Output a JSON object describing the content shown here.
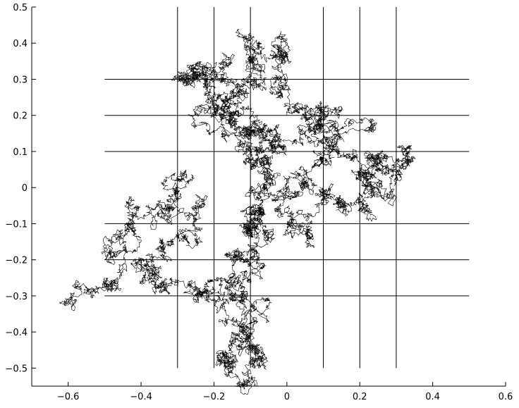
{
  "chart_data": {
    "type": "line",
    "title": "",
    "xlabel": "",
    "ylabel": "",
    "xlim": [
      -0.7,
      0.6
    ],
    "ylim": [
      -0.55,
      0.5
    ],
    "grid": false,
    "legend": "none",
    "xticks": [
      "−0.6",
      "−0.4",
      "−0.2",
      "0",
      "0.2",
      "0.4",
      "0.6"
    ],
    "xtick_values": [
      -0.6,
      -0.4,
      -0.2,
      0,
      0.2,
      0.4,
      0.6
    ],
    "yticks": [
      "−0.5",
      "−0.4",
      "−0.3",
      "−0.2",
      "−0.1",
      "0",
      "0.1",
      "0.2",
      "0.3",
      "0.4",
      "0.5"
    ],
    "ytick_values": [
      -0.5,
      -0.4,
      -0.3,
      -0.2,
      -0.1,
      0,
      0.1,
      0.2,
      0.3,
      0.4,
      0.5
    ],
    "reference_lines": {
      "vertical": {
        "x": [
          -0.3,
          -0.2,
          -0.1,
          0.1,
          0.2,
          0.3
        ],
        "y_range": [
          -0.5,
          0.5
        ]
      },
      "horizontal": {
        "y": [
          0.3,
          0.2,
          0.1,
          -0.1,
          -0.2,
          -0.3
        ],
        "x_range": [
          -0.5,
          0.5
        ]
      }
    },
    "series": [
      {
        "color": "#000000",
        "description_points": [
          [
            -0.58,
            -0.32
          ],
          [
            -0.53,
            -0.28
          ],
          [
            -0.5,
            -0.25
          ],
          [
            -0.46,
            -0.22
          ],
          [
            -0.44,
            -0.18
          ],
          [
            -0.46,
            -0.14
          ],
          [
            -0.43,
            -0.09
          ],
          [
            -0.38,
            -0.07
          ],
          [
            -0.33,
            -0.06
          ],
          [
            -0.3,
            0.0
          ],
          [
            -0.27,
            0.01
          ],
          [
            -0.24,
            -0.05
          ],
          [
            -0.27,
            -0.12
          ],
          [
            -0.3,
            -0.14
          ],
          [
            -0.34,
            -0.17
          ],
          [
            -0.37,
            -0.22
          ],
          [
            -0.4,
            -0.26
          ],
          [
            -0.36,
            -0.28
          ],
          [
            -0.3,
            -0.27
          ],
          [
            -0.26,
            -0.28
          ],
          [
            -0.22,
            -0.31
          ],
          [
            -0.18,
            -0.33
          ],
          [
            -0.14,
            -0.31
          ],
          [
            -0.1,
            -0.26
          ],
          [
            -0.08,
            -0.2
          ],
          [
            -0.05,
            -0.14
          ],
          [
            -0.09,
            -0.11
          ],
          [
            -0.11,
            -0.1
          ],
          [
            -0.07,
            -0.06
          ],
          [
            -0.06,
            0.01
          ],
          [
            -0.1,
            0.07
          ],
          [
            -0.12,
            0.12
          ],
          [
            -0.08,
            0.15
          ],
          [
            -0.05,
            0.13
          ],
          [
            -0.01,
            0.11
          ],
          [
            0.02,
            0.13
          ],
          [
            0.06,
            0.16
          ],
          [
            0.1,
            0.19
          ],
          [
            0.14,
            0.2
          ],
          [
            0.17,
            0.18
          ],
          [
            0.15,
            0.14
          ],
          [
            0.1,
            0.1
          ],
          [
            0.07,
            0.06
          ],
          [
            0.04,
            0.02
          ],
          [
            0.01,
            -0.03
          ],
          [
            -0.02,
            -0.06
          ],
          [
            0.02,
            -0.1
          ],
          [
            0.06,
            -0.12
          ],
          [
            0.08,
            -0.07
          ],
          [
            0.11,
            -0.03
          ],
          [
            0.16,
            -0.05
          ],
          [
            0.21,
            -0.07
          ],
          [
            0.24,
            -0.02
          ],
          [
            0.21,
            0.03
          ],
          [
            0.22,
            0.07
          ],
          [
            0.27,
            0.09
          ],
          [
            0.31,
            0.11
          ],
          [
            0.29,
            0.05
          ],
          [
            0.3,
            0.02
          ],
          [
            0.26,
            0.01
          ],
          [
            0.22,
            0.04
          ],
          [
            0.18,
            0.08
          ],
          [
            0.13,
            0.12
          ],
          [
            0.09,
            0.17
          ],
          [
            0.05,
            0.22
          ],
          [
            0.01,
            0.27
          ],
          [
            -0.02,
            0.31
          ],
          [
            0.0,
            0.37
          ],
          [
            -0.02,
            0.42
          ],
          [
            -0.07,
            0.39
          ],
          [
            -0.1,
            0.39
          ],
          [
            -0.07,
            0.33
          ],
          [
            -0.11,
            0.29
          ],
          [
            -0.14,
            0.26
          ],
          [
            -0.18,
            0.24
          ],
          [
            -0.2,
            0.2
          ],
          [
            -0.19,
            0.16
          ],
          [
            -0.16,
            0.14
          ],
          [
            -0.14,
            0.18
          ],
          [
            -0.17,
            0.24
          ],
          [
            -0.21,
            0.29
          ],
          [
            -0.24,
            0.31
          ],
          [
            -0.28,
            0.31
          ],
          [
            -0.3,
            0.3
          ],
          [
            -0.26,
            0.34
          ],
          [
            -0.21,
            0.33
          ],
          [
            -0.18,
            0.29
          ],
          [
            -0.13,
            0.27
          ],
          [
            -0.1,
            0.21
          ],
          [
            -0.09,
            0.16
          ],
          [
            -0.08,
            0.1
          ],
          [
            -0.06,
            0.04
          ],
          [
            -0.08,
            -0.02
          ],
          [
            -0.1,
            -0.08
          ],
          [
            -0.08,
            -0.14
          ],
          [
            -0.11,
            -0.2
          ],
          [
            -0.14,
            -0.26
          ],
          [
            -0.12,
            -0.3
          ],
          [
            -0.1,
            -0.35
          ],
          [
            -0.12,
            -0.4
          ],
          [
            -0.15,
            -0.43
          ],
          [
            -0.17,
            -0.47
          ],
          [
            -0.14,
            -0.49
          ],
          [
            -0.11,
            -0.53
          ],
          [
            -0.09,
            -0.5
          ],
          [
            -0.07,
            -0.46
          ],
          [
            -0.11,
            -0.42
          ],
          [
            -0.13,
            -0.38
          ]
        ]
      }
    ]
  }
}
